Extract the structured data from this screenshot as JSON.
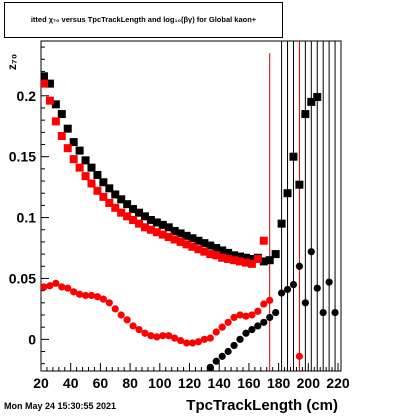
{
  "chart_data": {
    "type": "scatter",
    "title": "itted  χ₇₀  versus TpcTrackLength and log₁₀(βγ) for Global kaon+",
    "xlabel": "TpcTrackLength (cm)",
    "ylabel": "z₇₀",
    "xlim": [
      20,
      222
    ],
    "ylim": [
      -0.026,
      0.245
    ],
    "grid": false,
    "x_ticks": [
      20,
      40,
      60,
      80,
      100,
      120,
      140,
      160,
      180,
      200,
      220
    ],
    "y_ticks": [
      0,
      0.05,
      0.1,
      0.15,
      0.2
    ],
    "y_tick_labels": [
      "0",
      "0.05",
      "0.1",
      "0.15",
      "0.2"
    ],
    "series": [
      {
        "marker": "square",
        "color": "#000000",
        "points": [
          [
            22,
            0.216
          ],
          [
            26,
            0.21
          ],
          [
            30,
            0.193
          ],
          [
            34,
            0.185
          ],
          [
            38,
            0.173
          ],
          [
            42,
            0.162
          ],
          [
            46,
            0.155
          ],
          [
            50,
            0.147
          ],
          [
            54,
            0.141
          ],
          [
            58,
            0.135
          ],
          [
            62,
            0.129
          ],
          [
            66,
            0.124
          ],
          [
            70,
            0.119
          ],
          [
            74,
            0.115
          ],
          [
            78,
            0.111
          ],
          [
            82,
            0.107
          ],
          [
            86,
            0.104
          ],
          [
            90,
            0.101
          ],
          [
            94,
            0.098
          ],
          [
            98,
            0.096
          ],
          [
            102,
            0.094
          ],
          [
            106,
            0.092
          ],
          [
            110,
            0.089
          ],
          [
            114,
            0.087
          ],
          [
            118,
            0.085
          ],
          [
            122,
            0.083
          ],
          [
            126,
            0.081
          ],
          [
            130,
            0.079
          ],
          [
            134,
            0.077
          ],
          [
            138,
            0.075
          ],
          [
            142,
            0.073
          ],
          [
            146,
            0.071
          ],
          [
            150,
            0.069
          ],
          [
            154,
            0.068
          ],
          [
            158,
            0.067
          ],
          [
            162,
            0.066
          ],
          [
            166,
            0.067
          ],
          [
            170,
            0.064
          ],
          [
            174,
            0.065
          ],
          [
            178,
            0.07
          ],
          [
            182,
            0.095
          ],
          [
            186,
            0.12
          ],
          [
            190,
            0.15
          ],
          [
            194,
            0.127
          ],
          [
            198,
            0.185
          ],
          [
            202,
            0.195
          ],
          [
            206,
            0.199
          ]
        ]
      },
      {
        "marker": "square",
        "color": "#ff0000",
        "points": [
          [
            22,
            0.21
          ],
          [
            26,
            0.196
          ],
          [
            30,
            0.179
          ],
          [
            34,
            0.167
          ],
          [
            38,
            0.157
          ],
          [
            42,
            0.148
          ],
          [
            46,
            0.141
          ],
          [
            50,
            0.134
          ],
          [
            54,
            0.128
          ],
          [
            58,
            0.122
          ],
          [
            62,
            0.117
          ],
          [
            66,
            0.112
          ],
          [
            70,
            0.108
          ],
          [
            74,
            0.104
          ],
          [
            78,
            0.101
          ],
          [
            82,
            0.098
          ],
          [
            86,
            0.095
          ],
          [
            90,
            0.092
          ],
          [
            94,
            0.09
          ],
          [
            98,
            0.088
          ],
          [
            102,
            0.086
          ],
          [
            106,
            0.084
          ],
          [
            110,
            0.082
          ],
          [
            114,
            0.08
          ],
          [
            118,
            0.078
          ],
          [
            122,
            0.076
          ],
          [
            126,
            0.074
          ],
          [
            130,
            0.072
          ],
          [
            134,
            0.07
          ],
          [
            138,
            0.069
          ],
          [
            142,
            0.067
          ],
          [
            146,
            0.066
          ],
          [
            150,
            0.065
          ],
          [
            154,
            0.064
          ],
          [
            158,
            0.063
          ],
          [
            162,
            0.062
          ],
          [
            166,
            0.066
          ],
          [
            170,
            0.081
          ]
        ]
      },
      {
        "marker": "circle",
        "color": "#000000",
        "points": [
          [
            134,
            -0.023
          ],
          [
            138,
            -0.018
          ],
          [
            142,
            -0.014
          ],
          [
            146,
            -0.01
          ],
          [
            150,
            -0.005
          ],
          [
            154,
            0
          ],
          [
            158,
            0.005
          ],
          [
            162,
            0.008
          ],
          [
            166,
            0.011
          ],
          [
            170,
            0.014
          ],
          [
            174,
            0.018
          ],
          [
            178,
            0.022
          ],
          [
            182,
            0.038
          ],
          [
            186,
            0.041
          ],
          [
            190,
            0.045
          ],
          [
            194,
            0.06
          ],
          [
            198,
            0.03
          ],
          [
            202,
            0.072
          ],
          [
            206,
            0.042
          ],
          [
            210,
            0.022
          ],
          [
            214,
            0.047
          ],
          [
            218,
            0.022
          ]
        ]
      },
      {
        "marker": "circle",
        "color": "#ff0000",
        "points": [
          [
            22,
            0.043
          ],
          [
            26,
            0.044
          ],
          [
            30,
            0.046
          ],
          [
            34,
            0.043
          ],
          [
            38,
            0.042
          ],
          [
            42,
            0.039
          ],
          [
            46,
            0.037
          ],
          [
            50,
            0.036
          ],
          [
            54,
            0.036
          ],
          [
            58,
            0.035
          ],
          [
            62,
            0.033
          ],
          [
            66,
            0.03
          ],
          [
            70,
            0.025
          ],
          [
            74,
            0.02
          ],
          [
            78,
            0.016
          ],
          [
            82,
            0.011
          ],
          [
            86,
            0.008
          ],
          [
            90,
            0.005
          ],
          [
            94,
            0.003
          ],
          [
            98,
            0.002
          ],
          [
            102,
            0.003
          ],
          [
            106,
            0.003
          ],
          [
            110,
            0.001
          ],
          [
            114,
            -0.001
          ],
          [
            118,
            -0.003
          ],
          [
            122,
            -0.003
          ],
          [
            126,
            -0.002
          ],
          [
            130,
            0
          ],
          [
            134,
            0.001
          ],
          [
            138,
            0.006
          ],
          [
            142,
            0.01
          ],
          [
            146,
            0.014
          ],
          [
            150,
            0.018
          ],
          [
            154,
            0.02
          ],
          [
            158,
            0.019
          ],
          [
            162,
            0.02
          ],
          [
            166,
            0.023
          ],
          [
            170,
            0.029
          ],
          [
            174,
            0.032
          ],
          [
            194,
            -0.014
          ]
        ]
      }
    ],
    "error_bars": [
      {
        "x": 174,
        "y": 0.07,
        "low": -0.026,
        "high": 0.235,
        "color": "#cc0000"
      },
      {
        "x": 194,
        "y": 0.05,
        "low": -0.026,
        "high": 0.245,
        "color": "#cc0000"
      },
      {
        "x": 182,
        "y": 0.08,
        "low": -0.026,
        "high": 0.245,
        "color": "#000000"
      },
      {
        "x": 186,
        "y": 0.09,
        "low": -0.026,
        "high": 0.245,
        "color": "#000000"
      },
      {
        "x": 190,
        "y": 0.1,
        "low": -0.026,
        "high": 0.245,
        "color": "#000000"
      },
      {
        "x": 198,
        "y": 0.1,
        "low": -0.026,
        "high": 0.245,
        "color": "#000000"
      },
      {
        "x": 202,
        "y": 0.1,
        "low": -0.026,
        "high": 0.245,
        "color": "#000000"
      },
      {
        "x": 206,
        "y": 0.1,
        "low": -0.026,
        "high": 0.245,
        "color": "#000000"
      },
      {
        "x": 210,
        "y": 0.1,
        "low": -0.026,
        "high": 0.245,
        "color": "#000000"
      },
      {
        "x": 214,
        "y": 0.1,
        "low": -0.026,
        "high": 0.245,
        "color": "#000000"
      },
      {
        "x": 218,
        "y": 0.1,
        "low": -0.026,
        "high": 0.245,
        "color": "#000000"
      }
    ]
  },
  "footer": {
    "timestamp": "Mon May 24 15:30:55 2021"
  }
}
